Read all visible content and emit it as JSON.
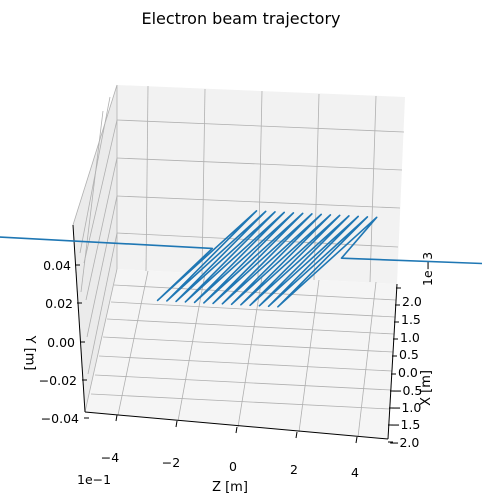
{
  "chart_data": {
    "type": "line",
    "projection": "3d",
    "title": "Electron beam trajectory",
    "xlabel": "Z [m]",
    "ylabel": "Y [m]",
    "zlabel": "X [m]",
    "z_axis": {
      "ticks": [
        -4,
        -2,
        0,
        2,
        4
      ],
      "tick_labels": [
        "−4",
        "−2",
        "0",
        "2",
        "4"
      ],
      "offset": "1e−1"
    },
    "y_axis": {
      "ticks": [
        0.04,
        0.02,
        0.0,
        -0.02,
        -0.04
      ],
      "tick_labels": [
        "0.04",
        "0.02",
        "0.00",
        "−0.02",
        "−0.04"
      ]
    },
    "x_axis": {
      "ticks": [
        2.0,
        1.5,
        1.0,
        0.5,
        0.0,
        -0.5,
        -1.0,
        -1.5,
        -2.0
      ],
      "tick_labels": [
        "2.0",
        "1.5",
        "1.0",
        "0.5",
        "0.0",
        "−0.5",
        "−1.0",
        "−1.5",
        "−2.0"
      ],
      "offset": "1e−3"
    },
    "grid": true,
    "series": [
      {
        "color": "#1f77b4",
        "description": "straight path, undulating section of 13 periods, straight path",
        "undulator_start_z": -0.05,
        "undulator_end_z": 0.15,
        "periods": 13,
        "x_amplitude": 0.0023,
        "x_offset_after": 0.0008
      }
    ]
  }
}
